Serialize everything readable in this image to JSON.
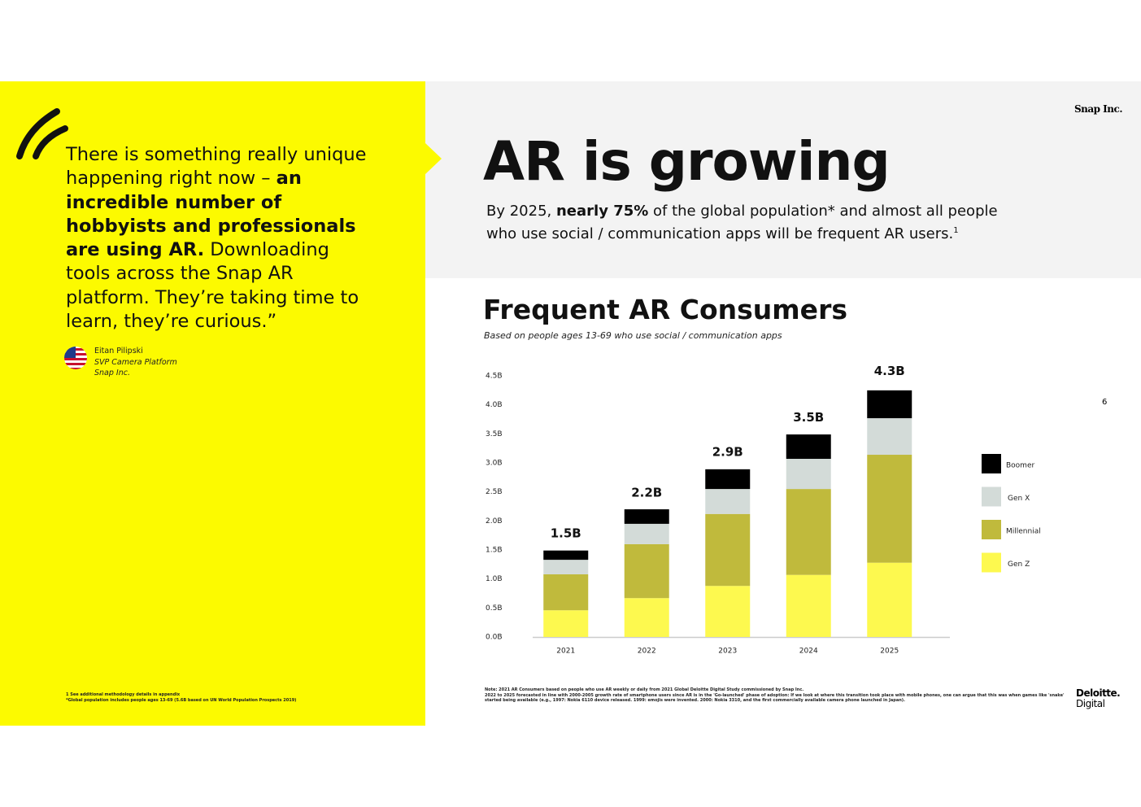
{
  "quote": {
    "parts": [
      "There is something really unique happening right now – ",
      "an incredible number of hobbyists and professionals are using AR.",
      " Downloading tools across the Snap AR platform. They’re taking time to learn, they’re curious.”"
    ],
    "author": "Eitan Pilipski",
    "role": "SVP Camera Platform",
    "company": "Snap Inc."
  },
  "left_footnotes": [
    "1 See additional methodology details in appendix",
    "*Global population includes people ages 13-69 (5.6B based on UN World Population Prospects 2019)"
  ],
  "header": {
    "brand": "Snap Inc.",
    "title": "AR is growing",
    "subtitle_parts": [
      "By 2025, ",
      "nearly 75%",
      " of the global population* and almost all people who use social / communication apps will be frequent AR users.",
      "1"
    ]
  },
  "page_number": "6",
  "chart_data": {
    "type": "stacked_bar",
    "title": "Frequent AR Consumers",
    "subtitle": "Based on people ages 13-69 who use social / communication apps",
    "categories": [
      "2021",
      "2022",
      "2023",
      "2024",
      "2025"
    ],
    "series": [
      {
        "name": "Gen Z",
        "color": "#fdf94f",
        "values": [
          0.46,
          0.67,
          0.88,
          1.07,
          1.28
        ]
      },
      {
        "name": "Millennial",
        "color": "#c0ba3c",
        "values": [
          0.62,
          0.93,
          1.24,
          1.48,
          1.86
        ]
      },
      {
        "name": "Gen X",
        "color": "#d3dbd8",
        "values": [
          0.25,
          0.35,
          0.43,
          0.52,
          0.63
        ]
      },
      {
        "name": "Boomer",
        "color": "#000000",
        "values": [
          0.16,
          0.25,
          0.34,
          0.42,
          0.48
        ]
      }
    ],
    "totals": {
      "values": [
        1.5,
        2.2,
        2.9,
        3.5,
        4.3
      ],
      "value_labels": [
        "1.5B",
        "2.2B",
        "2.9B",
        "3.5B",
        "4.3B"
      ]
    },
    "ylim": [
      0,
      4.5
    ],
    "yticks": [
      {
        "value": 0,
        "label": "0.0B"
      },
      {
        "value": 0.5,
        "label": "0.5B"
      },
      {
        "value": 1,
        "label": "1.0B"
      },
      {
        "value": 1.5,
        "label": "1.5B"
      },
      {
        "value": 2,
        "label": "2.0B"
      },
      {
        "value": 2.5,
        "label": "2.5B"
      },
      {
        "value": 3,
        "label": "3.0B"
      },
      {
        "value": 3.5,
        "label": "3.5B"
      },
      {
        "value": 4,
        "label": "4.0B"
      },
      {
        "value": 4.5,
        "label": "4.5B"
      }
    ],
    "grid": false,
    "legend": "right"
  },
  "notes": [
    "Note: 2021 AR Consumers based on people who use AR weekly or daily from 2021 Global Deloitte Digital Study commissioned by Snap Inc.",
    "2022 to 2025 forecasted in line with 2000-2005 growth rate of smartphone users since AR is in the 'Go-launched' phase of adoption: If we look at where this transition took place with mobile phones, one can argue that this was when games like 'snake'",
    "started being available (e.g., 1997: Nokia 6110 device released. 1999: emojis were invented. 2000: Nokia 3310, and the first commercially available camera phone launched in Japan)."
  ],
  "logo": [
    "Deloitte.",
    "Digital"
  ]
}
